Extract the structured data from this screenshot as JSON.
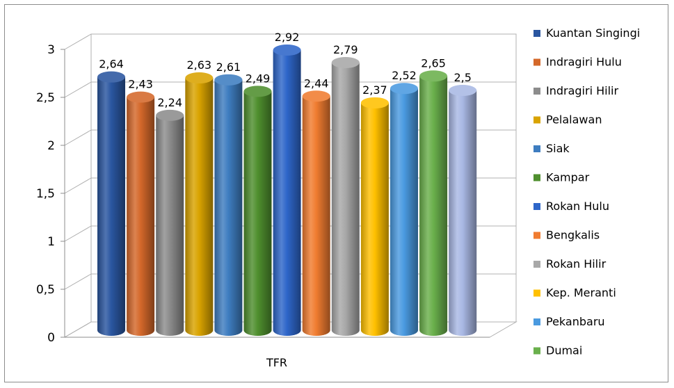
{
  "chart_data": {
    "type": "bar",
    "title": "",
    "xlabel": "",
    "ylabel": "",
    "categories": [
      "TFR"
    ],
    "ylim": [
      0,
      3
    ],
    "yticks": [
      "0",
      "0,5",
      "1",
      "1,5",
      "2",
      "2,5",
      "3"
    ],
    "grid": true,
    "legend_position": "right",
    "series": [
      {
        "name": "Kuantan Singingi",
        "value": 2.64,
        "label": "2,64",
        "color": "#2a56a0"
      },
      {
        "name": "Indragiri Hulu",
        "value": 2.43,
        "label": "2,43",
        "color": "#d4682a"
      },
      {
        "name": "Indragiri Hilir",
        "value": 2.24,
        "label": "2,24",
        "color": "#8c8c8c"
      },
      {
        "name": "Pelalawan",
        "value": 2.63,
        "label": "2,63",
        "color": "#d9a300"
      },
      {
        "name": "Siak",
        "value": 2.61,
        "label": "2,61",
        "color": "#3e7dc0"
      },
      {
        "name": "Kampar",
        "value": 2.49,
        "label": "2,49",
        "color": "#4f8f2e"
      },
      {
        "name": "Rokan Hulu",
        "value": 2.92,
        "label": "2,92",
        "color": "#2e66c9"
      },
      {
        "name": "Bengkalis",
        "value": 2.44,
        "label": "2,44",
        "color": "#f07c30"
      },
      {
        "name": "Rokan Hilir",
        "value": 2.79,
        "label": "2,79",
        "color": "#a8a8a8"
      },
      {
        "name": "Kep. Meranti",
        "value": 2.37,
        "label": "2,37",
        "color": "#ffc000"
      },
      {
        "name": "Pekanbaru",
        "value": 2.52,
        "label": "2,52",
        "color": "#4a9ae0"
      },
      {
        "name": "Dumai",
        "value": 2.65,
        "label": "2,65",
        "color": "#6ab04c"
      },
      {
        "name": "",
        "value": 2.5,
        "label": "2,5",
        "color": "#a9b8e4"
      }
    ]
  }
}
